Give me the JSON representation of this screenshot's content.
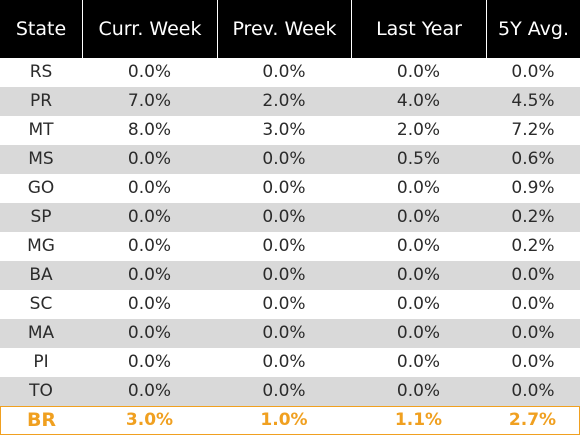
{
  "chart_data": {
    "type": "table",
    "columns": [
      "State",
      "Curr. Week",
      "Prev. Week",
      "Last Year",
      "5Y Avg."
    ],
    "rows": [
      [
        "RS",
        "0.0%",
        "0.0%",
        "0.0%",
        "0.0%"
      ],
      [
        "PR",
        "7.0%",
        "2.0%",
        "4.0%",
        "4.5%"
      ],
      [
        "MT",
        "8.0%",
        "3.0%",
        "2.0%",
        "7.2%"
      ],
      [
        "MS",
        "0.0%",
        "0.0%",
        "0.5%",
        "0.6%"
      ],
      [
        "GO",
        "0.0%",
        "0.0%",
        "0.0%",
        "0.9%"
      ],
      [
        "SP",
        "0.0%",
        "0.0%",
        "0.0%",
        "0.2%"
      ],
      [
        "MG",
        "0.0%",
        "0.0%",
        "0.0%",
        "0.2%"
      ],
      [
        "BA",
        "0.0%",
        "0.0%",
        "0.0%",
        "0.0%"
      ],
      [
        "SC",
        "0.0%",
        "0.0%",
        "0.0%",
        "0.0%"
      ],
      [
        "MA",
        "0.0%",
        "0.0%",
        "0.0%",
        "0.0%"
      ],
      [
        "PI",
        "0.0%",
        "0.0%",
        "0.0%",
        "0.0%"
      ],
      [
        "TO",
        "0.0%",
        "0.0%",
        "0.0%",
        "0.0%"
      ]
    ],
    "total_row": [
      "BR",
      "3.0%",
      "1.0%",
      "1.1%",
      "2.7%"
    ],
    "colors": {
      "header_bg": "#000000",
      "header_text": "#ffffff",
      "stripe_bg": "#d9d9d9",
      "total_accent": "#f0a020"
    }
  }
}
